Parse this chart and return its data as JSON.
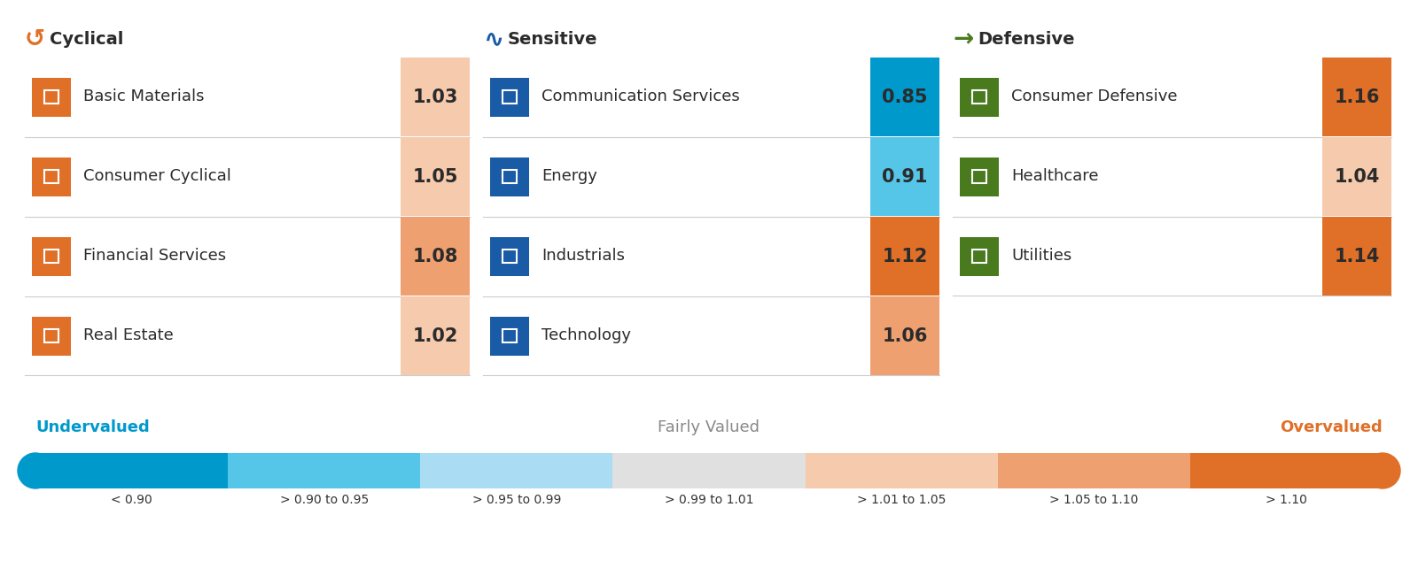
{
  "title_cyclical": "Cyclical",
  "title_sensitive": "Sensitive",
  "title_defensive": "Defensive",
  "sectors": [
    {
      "name": "Basic Materials",
      "value": 1.03,
      "category": "cyclical"
    },
    {
      "name": "Consumer Cyclical",
      "value": 1.05,
      "category": "cyclical"
    },
    {
      "name": "Financial Services",
      "value": 1.08,
      "category": "cyclical"
    },
    {
      "name": "Real Estate",
      "value": 1.02,
      "category": "cyclical"
    },
    {
      "name": "Communication Services",
      "value": 0.85,
      "category": "sensitive"
    },
    {
      "name": "Energy",
      "value": 0.91,
      "category": "sensitive"
    },
    {
      "name": "Industrials",
      "value": 1.12,
      "category": "sensitive"
    },
    {
      "name": "Technology",
      "value": 1.06,
      "category": "sensitive"
    },
    {
      "name": "Consumer Defensive",
      "value": 1.16,
      "category": "defensive"
    },
    {
      "name": "Healthcare",
      "value": 1.04,
      "category": "defensive"
    },
    {
      "name": "Utilities",
      "value": 1.14,
      "category": "defensive"
    }
  ],
  "color_scale": [
    {
      "label": "< 0.90",
      "color": "#0099CC"
    },
    {
      "label": "> 0.90 to 0.95",
      "color": "#55C5E8"
    },
    {
      "label": "> 0.95 to 0.99",
      "color": "#AADDF4"
    },
    {
      "label": "> 0.99 to 1.01",
      "color": "#E0E0E0"
    },
    {
      "label": "> 1.01 to 1.05",
      "color": "#F5CAAD"
    },
    {
      "label": "> 1.05 to 1.10",
      "color": "#EFA070"
    },
    {
      "label": "> 1.10",
      "color": "#E07028"
    }
  ],
  "bg_color": "#FFFFFF",
  "text_color": "#2B2B2B",
  "cyclical_color": "#E07028",
  "sensitive_color": "#1A5BA6",
  "defensive_color": "#4A7A1E",
  "undervalued_color": "#0099CC",
  "overvalued_color": "#E07028",
  "fairly_valued_color": "#888888",
  "sep_color": "#CCCCCC",
  "icon_cyclical_color": "#E07028",
  "icon_sensitive_color": "#1A5BA6",
  "icon_defensive_color": "#4A7A1E",
  "val_text_dark": "#2B2B2B",
  "val_text_white": "#FFFFFF"
}
